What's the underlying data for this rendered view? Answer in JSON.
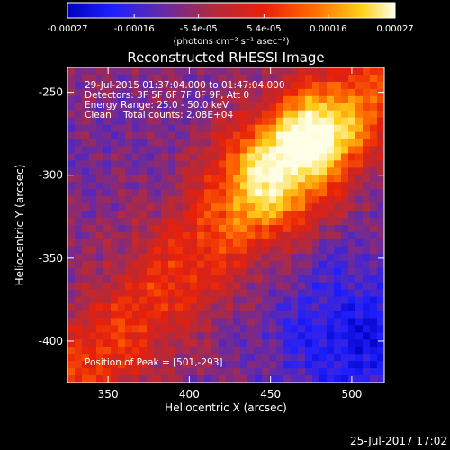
{
  "chart_data": {
    "type": "heatmap",
    "title": "Reconstructed RHESSI Image",
    "xlabel": "Heliocentric X (arcsec)",
    "ylabel": "Heliocentric Y (arcsec)",
    "xlim": [
      325,
      520
    ],
    "ylim": [
      -425,
      -235
    ],
    "x_ticks": [
      350,
      400,
      450,
      500
    ],
    "y_ticks": [
      -250,
      -300,
      -350,
      -400
    ],
    "colorbar": {
      "ticks": [
        "-0.00027",
        "-0.00016",
        "-5.4e-05",
        "5.4e-05",
        "0.00016",
        "0.00027"
      ],
      "tick_values": [
        -0.00027,
        -0.00016,
        -5.4e-05,
        5.4e-05,
        0.00016,
        0.00027
      ],
      "units": "(photons cm⁻² s⁻¹ asec⁻²)",
      "range": [
        -0.00027,
        0.00027
      ],
      "colors": [
        "#0000c0",
        "#2020ff",
        "#6a2aa0",
        "#b42a3a",
        "#e8200a",
        "#ff6a00",
        "#ffd21a",
        "#ffffe8"
      ]
    },
    "annotations": [
      "29-Jul-2015 01:37:04.000 to 01:47:04.000",
      "Detectors: 3F 5F 6F 7F 8F 9F, Att 0",
      "Energy Range: 25.0 - 50.0 keV",
      "Clean    Total counts: 2.08E+04"
    ],
    "peak_label": "Position of Peak = [501,-293]",
    "peak_position": [
      501,
      -293
    ]
  },
  "footer": {
    "timestamp": "25-Jul-2017 17:02"
  }
}
